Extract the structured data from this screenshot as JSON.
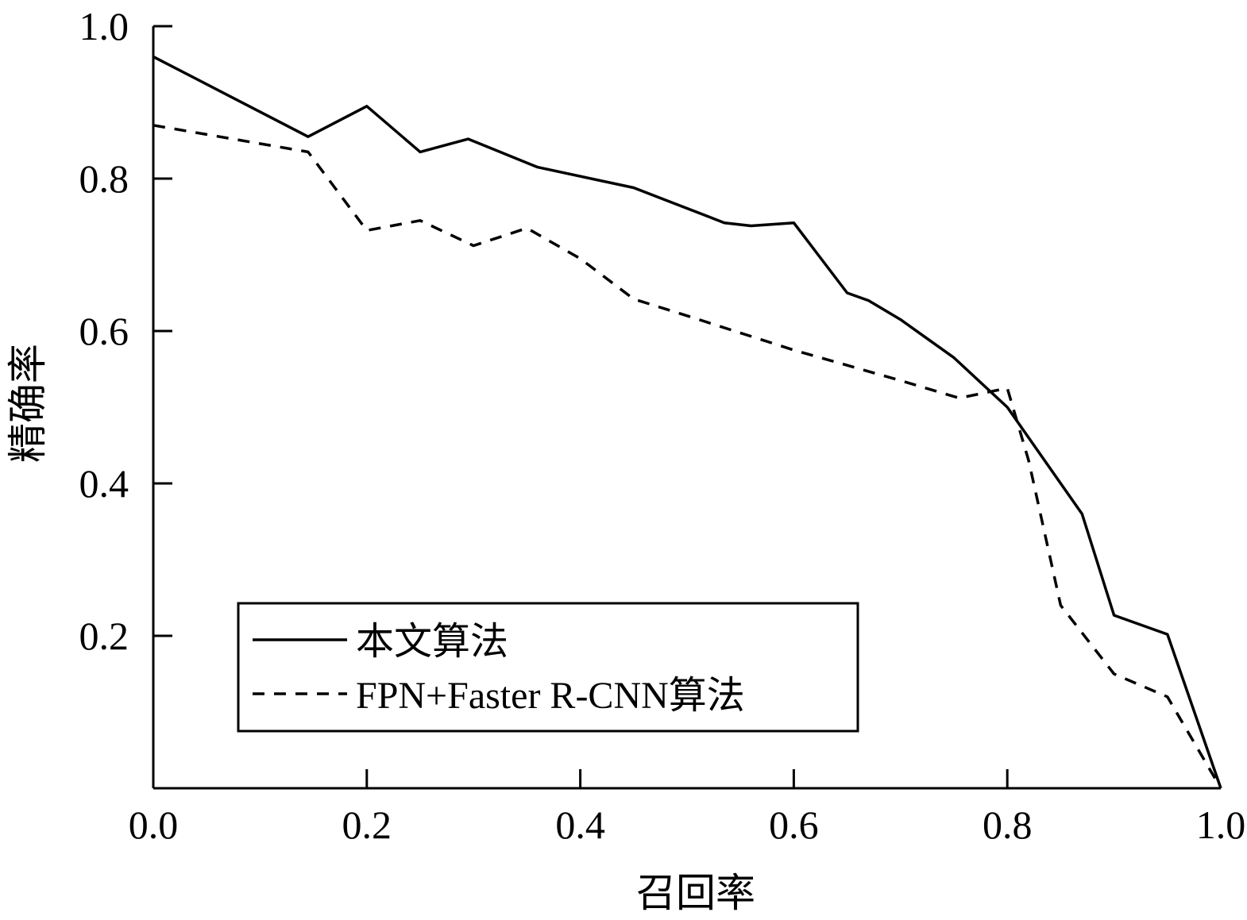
{
  "chart_data": {
    "type": "line",
    "xlabel": "召回率",
    "ylabel": "精确率",
    "xlim": [
      0,
      1
    ],
    "ylim": [
      0,
      1
    ],
    "x_ticks": [
      "0.0",
      "0.2",
      "0.4",
      "0.6",
      "0.8",
      "1.0"
    ],
    "y_ticks": [
      "0.2",
      "0.4",
      "0.6",
      "0.8",
      "1.0"
    ],
    "grid": false,
    "legend_position": "lower-left",
    "series": [
      {
        "name": "本文算法",
        "style": "solid",
        "color": "#000000",
        "x": [
          0.0,
          0.145,
          0.2,
          0.25,
          0.295,
          0.36,
          0.45,
          0.535,
          0.56,
          0.6,
          0.65,
          0.67,
          0.7,
          0.75,
          0.8,
          0.85,
          0.87,
          0.9,
          0.95,
          1.0
        ],
        "y": [
          0.96,
          0.855,
          0.895,
          0.835,
          0.852,
          0.815,
          0.788,
          0.742,
          0.738,
          0.742,
          0.65,
          0.64,
          0.615,
          0.565,
          0.5,
          0.4,
          0.36,
          0.227,
          0.202,
          0.0
        ]
      },
      {
        "name": "FPN+Faster R-CNN算法",
        "style": "dashed",
        "color": "#000000",
        "x": [
          0.0,
          0.145,
          0.2,
          0.25,
          0.3,
          0.35,
          0.4,
          0.45,
          0.5,
          0.6,
          0.7,
          0.755,
          0.8,
          0.82,
          0.85,
          0.9,
          0.95,
          1.0
        ],
        "y": [
          0.87,
          0.835,
          0.732,
          0.745,
          0.712,
          0.735,
          0.695,
          0.642,
          0.62,
          0.575,
          0.535,
          0.512,
          0.525,
          0.43,
          0.24,
          0.15,
          0.12,
          0.0
        ]
      }
    ]
  }
}
